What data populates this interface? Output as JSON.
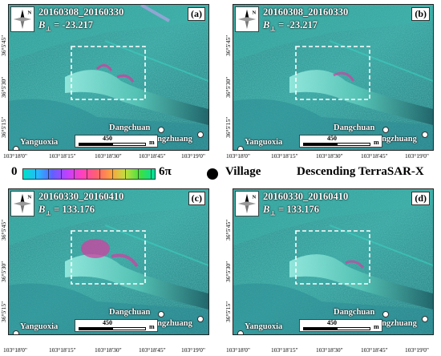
{
  "panels": [
    {
      "label": "(a)",
      "dates": "20160308_20160330",
      "baseline_symbol": "B",
      "baseline_sub": "⊥",
      "baseline_value": "= -23.217"
    },
    {
      "label": "(b)",
      "dates": "20160308_20160330",
      "baseline_symbol": "B",
      "baseline_sub": "⊥",
      "baseline_value": "= -23.217"
    },
    {
      "label": "(c)",
      "dates": "20160330_20160410",
      "baseline_symbol": "B",
      "baseline_sub": "⊥",
      "baseline_value": "= 133.176"
    },
    {
      "label": "(d)",
      "dates": "20160330_20160410",
      "baseline_symbol": "B",
      "baseline_sub": "⊥",
      "baseline_value": "= 133.176"
    }
  ],
  "north_label": "N",
  "villages": {
    "dangchuan": "Dangchuan",
    "sanxingzhuang": "Sanxingzhuang",
    "yanguoxia": "Yanguoxia"
  },
  "scale": {
    "value": "450",
    "unit": "m"
  },
  "lat_labels": [
    "36°5'45\"",
    "36°5'30\"",
    "36°5'15\""
  ],
  "lon_labels_left": [
    "103°18'0\"",
    "103°18'15\"",
    "103°18'30\"",
    "103°18'45\"",
    "103°19'0\""
  ],
  "lon_labels_right": [
    "103°18'0\"",
    "103°18'15\"",
    "103°18'30\"",
    "103°18'45\"",
    "103°19'0\""
  ],
  "legend": {
    "min": "0",
    "max": "6π",
    "village": "Village",
    "sensor": "Descending TerraSAR-X"
  },
  "colors": {
    "terrain_base": "#2a8a8a",
    "terrain_light": "#5fd0c8",
    "fringe_pink": "#d040a0",
    "frame": "#ffffff"
  }
}
